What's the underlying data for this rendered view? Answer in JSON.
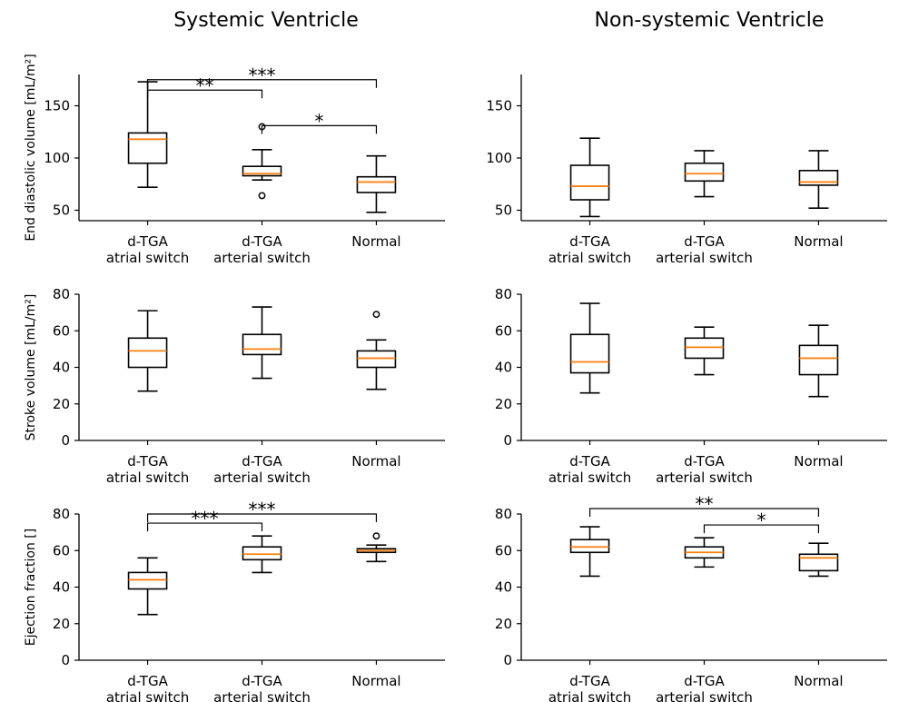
{
  "column_titles": [
    "Systemic Ventricle",
    "Non-systemic Ventricle"
  ],
  "styles": {
    "median_color": "#ff7f0e",
    "box_color": "#000000"
  },
  "chart_data": [
    {
      "type": "box",
      "ylabel": "End diastolic volume [mL/m²]",
      "categories": [
        "d-TGA\natrial switch",
        "d-TGA\narterial switch",
        "Normal"
      ],
      "ylim": [
        40,
        180
      ],
      "yticks": [
        50,
        100,
        150
      ],
      "boxes": [
        {
          "whisker_low": 72,
          "q1": 95,
          "median": 118,
          "q3": 124,
          "whisker_high": 173,
          "fliers": []
        },
        {
          "whisker_low": 79,
          "q1": 83,
          "median": 85,
          "q3": 92,
          "whisker_high": 108,
          "fliers": [
            64,
            130
          ]
        },
        {
          "whisker_low": 48,
          "q1": 67,
          "median": 77,
          "q3": 82,
          "whisker_high": 102,
          "fliers": []
        }
      ],
      "significance": [
        {
          "from": 0,
          "to": 1,
          "y": 165,
          "label": "**"
        },
        {
          "from": 0,
          "to": 2,
          "y": 175,
          "label": "***"
        },
        {
          "from": 1,
          "to": 2,
          "y": 131,
          "label": "*"
        }
      ]
    },
    {
      "type": "box",
      "ylabel": "",
      "categories": [
        "d-TGA\natrial switch",
        "d-TGA\narterial switch",
        "Normal"
      ],
      "ylim": [
        40,
        180
      ],
      "yticks": [
        50,
        100,
        150
      ],
      "boxes": [
        {
          "whisker_low": 44,
          "q1": 60,
          "median": 73,
          "q3": 93,
          "whisker_high": 119,
          "fliers": []
        },
        {
          "whisker_low": 63,
          "q1": 78,
          "median": 85,
          "q3": 95,
          "whisker_high": 107,
          "fliers": []
        },
        {
          "whisker_low": 52,
          "q1": 74,
          "median": 77,
          "q3": 88,
          "whisker_high": 107,
          "fliers": []
        }
      ],
      "significance": []
    },
    {
      "type": "box",
      "ylabel": "Stroke volume [mL/m²]",
      "categories": [
        "d-TGA\natrial switch",
        "d-TGA\narterial switch",
        "Normal"
      ],
      "ylim": [
        0,
        80
      ],
      "yticks": [
        0,
        20,
        40,
        60,
        80
      ],
      "boxes": [
        {
          "whisker_low": 27,
          "q1": 40,
          "median": 49,
          "q3": 56,
          "whisker_high": 71,
          "fliers": []
        },
        {
          "whisker_low": 34,
          "q1": 47,
          "median": 50,
          "q3": 58,
          "whisker_high": 73,
          "fliers": []
        },
        {
          "whisker_low": 28,
          "q1": 40,
          "median": 45,
          "q3": 49,
          "whisker_high": 55,
          "fliers": [
            69
          ]
        }
      ],
      "significance": []
    },
    {
      "type": "box",
      "ylabel": "",
      "categories": [
        "d-TGA\natrial switch",
        "d-TGA\narterial switch",
        "Normal"
      ],
      "ylim": [
        0,
        80
      ],
      "yticks": [
        0,
        20,
        40,
        60,
        80
      ],
      "boxes": [
        {
          "whisker_low": 26,
          "q1": 37,
          "median": 43,
          "q3": 58,
          "whisker_high": 75,
          "fliers": []
        },
        {
          "whisker_low": 36,
          "q1": 45,
          "median": 51,
          "q3": 56,
          "whisker_high": 62,
          "fliers": []
        },
        {
          "whisker_low": 24,
          "q1": 36,
          "median": 45,
          "q3": 52,
          "whisker_high": 63,
          "fliers": []
        }
      ],
      "significance": []
    },
    {
      "type": "box",
      "ylabel": "Ejection fraction []",
      "categories": [
        "d-TGA\natrial switch",
        "d-TGA\narterial switch",
        "Normal"
      ],
      "ylim": [
        0,
        80
      ],
      "yticks": [
        0,
        20,
        40,
        60,
        80
      ],
      "boxes": [
        {
          "whisker_low": 25,
          "q1": 39,
          "median": 44,
          "q3": 48,
          "whisker_high": 56,
          "fliers": []
        },
        {
          "whisker_low": 48,
          "q1": 55,
          "median": 58,
          "q3": 62,
          "whisker_high": 68,
          "fliers": []
        },
        {
          "whisker_low": 54,
          "q1": 59,
          "median": 60,
          "q3": 61,
          "whisker_high": 63,
          "fliers": [
            68
          ]
        }
      ],
      "significance": [
        {
          "from": 0,
          "to": 1,
          "y": 75,
          "label": "***"
        },
        {
          "from": 0,
          "to": 2,
          "y": 80,
          "label": "***"
        }
      ]
    },
    {
      "type": "box",
      "ylabel": "",
      "categories": [
        "d-TGA\natrial switch",
        "d-TGA\narterial switch",
        "Normal"
      ],
      "ylim": [
        0,
        80
      ],
      "yticks": [
        0,
        20,
        40,
        60,
        80
      ],
      "boxes": [
        {
          "whisker_low": 46,
          "q1": 59,
          "median": 62,
          "q3": 66,
          "whisker_high": 73,
          "fliers": []
        },
        {
          "whisker_low": 51,
          "q1": 56,
          "median": 59,
          "q3": 62,
          "whisker_high": 67,
          "fliers": []
        },
        {
          "whisker_low": 46,
          "q1": 49,
          "median": 56,
          "q3": 58,
          "whisker_high": 64,
          "fliers": []
        }
      ],
      "significance": [
        {
          "from": 0,
          "to": 2,
          "y": 83,
          "label": "**"
        },
        {
          "from": 1,
          "to": 2,
          "y": 74,
          "label": "*"
        }
      ]
    }
  ]
}
